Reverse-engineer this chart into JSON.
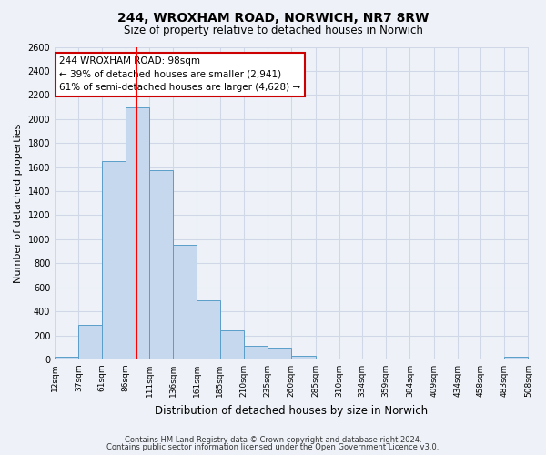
{
  "title1": "244, WROXHAM ROAD, NORWICH, NR7 8RW",
  "title2": "Size of property relative to detached houses in Norwich",
  "xlabel": "Distribution of detached houses by size in Norwich",
  "ylabel": "Number of detached properties",
  "bin_edges": [
    12,
    37,
    61,
    86,
    111,
    136,
    161,
    185,
    210,
    235,
    260,
    285,
    310,
    334,
    359,
    384,
    409,
    434,
    458,
    483,
    508
  ],
  "bin_labels": [
    "12sqm",
    "37sqm",
    "61sqm",
    "86sqm",
    "111sqm",
    "136sqm",
    "161sqm",
    "185sqm",
    "210sqm",
    "235sqm",
    "260sqm",
    "285sqm",
    "310sqm",
    "334sqm",
    "359sqm",
    "384sqm",
    "409sqm",
    "434sqm",
    "458sqm",
    "483sqm",
    "508sqm"
  ],
  "counts": [
    20,
    290,
    1650,
    2100,
    1575,
    950,
    490,
    245,
    110,
    95,
    30,
    5,
    5,
    5,
    5,
    5,
    5,
    5,
    5,
    20,
    0
  ],
  "bar_color": "#c5d8ed",
  "bar_edge_color": "#5a9ec9",
  "red_line_x": 98,
  "ylim": [
    0,
    2600
  ],
  "yticks": [
    0,
    200,
    400,
    600,
    800,
    1000,
    1200,
    1400,
    1600,
    1800,
    2000,
    2200,
    2400,
    2600
  ],
  "annotation_text": "244 WROXHAM ROAD: 98sqm\n← 39% of detached houses are smaller (2,941)\n61% of semi-detached houses are larger (4,628) →",
  "footnote1": "Contains HM Land Registry data © Crown copyright and database right 2024.",
  "footnote2": "Contains public sector information licensed under the Open Government Licence v3.0.",
  "box_color": "#ffffff",
  "box_border_color": "#cc0000",
  "grid_color": "#d0d8e8",
  "background_color": "#eef2f8"
}
